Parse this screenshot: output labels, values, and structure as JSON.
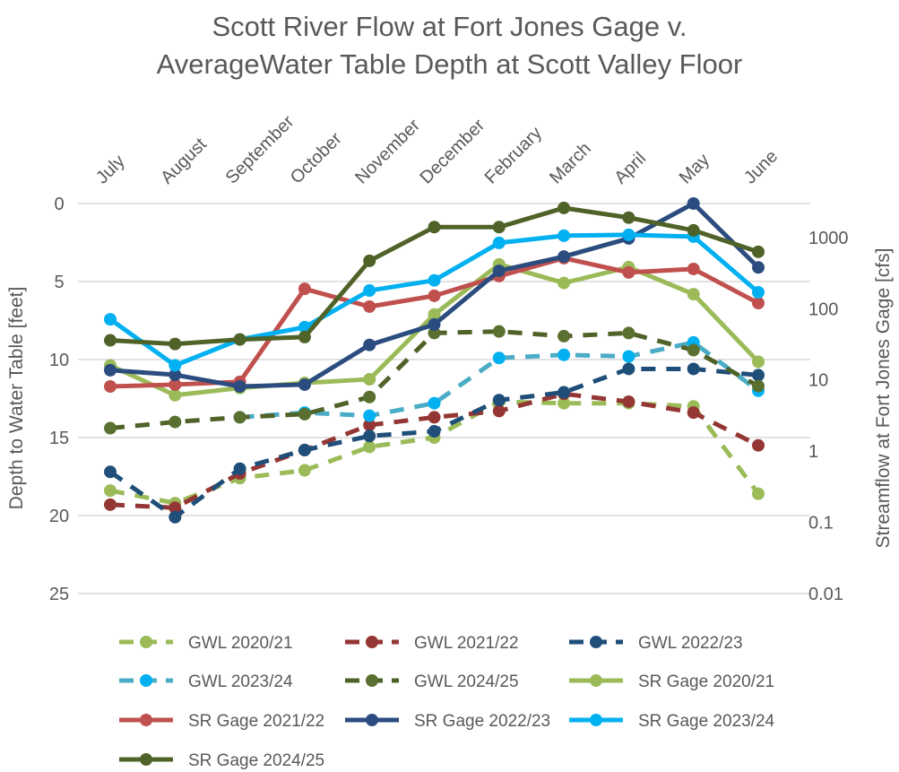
{
  "chart_data": {
    "type": "line",
    "title": [
      "Scott River Flow at Fort Jones Gage v.",
      "AverageWater Table Depth at Scott Valley Floor"
    ],
    "categories": [
      "July",
      "August",
      "September",
      "October",
      "November",
      "December",
      "February",
      "March",
      "April",
      "May",
      "June"
    ],
    "ylabel_left": "Depth to Water Table [feet]",
    "ylabel_right": "Streamflow at Fort Jones Gage [cfs]",
    "left_axis": {
      "range": [
        0,
        25
      ],
      "reversed": true,
      "ticks": [
        "0",
        "5",
        "10",
        "15",
        "20",
        "25"
      ],
      "tick_values": [
        0,
        5,
        10,
        15,
        20,
        25
      ]
    },
    "right_axis": {
      "scale": "log",
      "range": [
        0.01,
        3000
      ],
      "ticks": [
        "0.01",
        "0.1",
        "1",
        "10",
        "100",
        "1000"
      ],
      "tick_values": [
        0.01,
        0.1,
        1,
        10,
        100,
        1000
      ]
    },
    "grid": true,
    "legend_position": "bottom",
    "series": [
      {
        "name": "GWL 2020/21",
        "axis": "left",
        "style": "dashed",
        "color": "#9BBB59",
        "marker": "#9BBB59",
        "values": [
          18.4,
          19.2,
          17.6,
          17.1,
          15.6,
          15.0,
          12.7,
          12.8,
          12.8,
          13.0,
          18.6
        ]
      },
      {
        "name": "GWL 2021/22",
        "axis": "left",
        "style": "dashed",
        "color": "#943634",
        "marker": "#943634",
        "values": [
          19.3,
          19.5,
          17.3,
          15.8,
          14.2,
          13.7,
          13.3,
          12.2,
          12.7,
          13.4,
          15.5
        ]
      },
      {
        "name": "GWL 2022/23",
        "axis": "left",
        "style": "dashed",
        "color": "#1F4E79",
        "marker": "#1F4E79",
        "values": [
          17.2,
          20.1,
          17.0,
          15.8,
          14.9,
          14.6,
          12.6,
          12.1,
          10.6,
          10.6,
          11.0
        ]
      },
      {
        "name": "GWL 2023/24",
        "axis": "left",
        "style": "dashed",
        "color": "#4BACC6",
        "marker": "#00B0F0",
        "values": [
          null,
          null,
          13.7,
          13.4,
          13.6,
          12.8,
          9.9,
          9.7,
          9.8,
          8.9,
          12.0
        ]
      },
      {
        "name": "GWL 2024/25",
        "axis": "left",
        "style": "dashed",
        "color": "#4F6228",
        "marker": "#5A7030",
        "values": [
          14.4,
          14.0,
          13.7,
          13.5,
          12.4,
          8.3,
          8.2,
          8.5,
          8.3,
          9.4,
          11.7
        ]
      },
      {
        "name": "SR Gage 2020/21",
        "axis": "right",
        "style": "solid",
        "color": "#9BBB59",
        "marker": "#9BBB59",
        "values": [
          16,
          6.1,
          7.7,
          9.1,
          10.2,
          83,
          420,
          230,
          384,
          160,
          18
        ]
      },
      {
        "name": "SR Gage 2021/22",
        "axis": "right",
        "style": "solid",
        "color": "#C0504D",
        "marker": "#C0504D",
        "values": [
          8.1,
          8.6,
          9.4,
          190,
          107,
          152,
          287,
          513,
          323,
          362,
          120
        ]
      },
      {
        "name": "SR Gage 2022/23",
        "axis": "right",
        "style": "solid",
        "color": "#2B4C7E",
        "marker": "#2B4C7E",
        "values": [
          13.7,
          11.8,
          8.1,
          8.6,
          31,
          60,
          340,
          540,
          970,
          3000,
          380
        ]
      },
      {
        "name": "SR Gage 2023/24",
        "axis": "right",
        "style": "solid",
        "color": "#00B0F0",
        "marker": "#00B0F0",
        "values": [
          71,
          16,
          37,
          55,
          180,
          250,
          840,
          1060,
          1090,
          1030,
          170
        ]
      },
      {
        "name": "SR Gage 2024/25",
        "axis": "right",
        "style": "solid",
        "color": "#4F6228",
        "marker": "#4F6228",
        "values": [
          36,
          32,
          37,
          40,
          470,
          1400,
          1400,
          2600,
          1900,
          1260,
          630
        ]
      }
    ]
  }
}
